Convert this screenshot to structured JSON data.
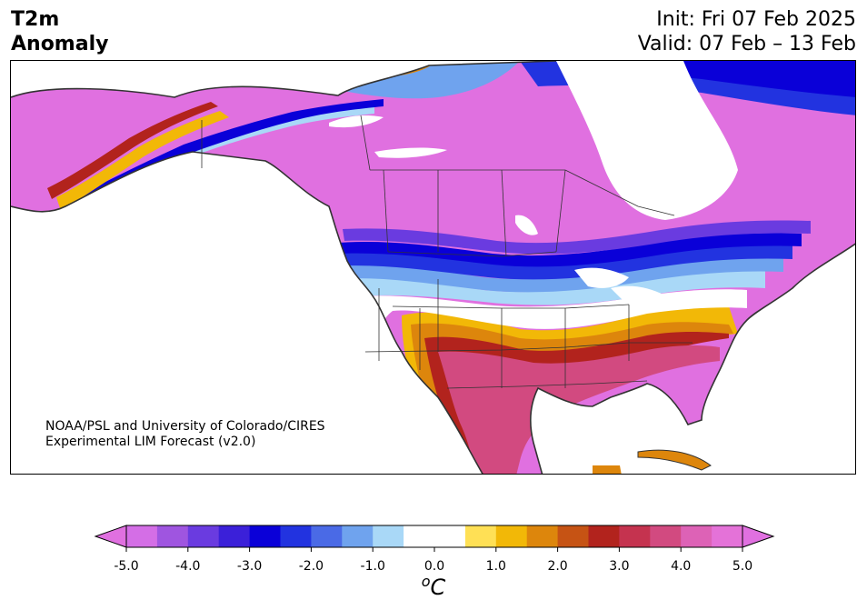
{
  "title": {
    "line1": "T2m",
    "line2": "Anomaly"
  },
  "forecast_info": {
    "init": "Init: Fri 07 Feb 2025",
    "valid": "Valid: 07 Feb – 13 Feb"
  },
  "credit": {
    "line1": "NOAA/PSL and University of Colorado/CIRES",
    "line2": "Experimental LIM Forecast (v2.0)"
  },
  "colorbar": {
    "unit": "oC",
    "ticks": [
      "-5.0",
      "-4.0",
      "-3.0",
      "-2.0",
      "-1.0",
      "0.0",
      "1.0",
      "2.0",
      "3.0",
      "4.0",
      "5.0"
    ],
    "levels": [
      -5.0,
      -4.5,
      -4.0,
      -3.5,
      -3.0,
      -2.5,
      -2.0,
      -1.5,
      -1.0,
      -0.5,
      0.5,
      1.0,
      1.5,
      2.0,
      2.5,
      3.0,
      3.5,
      4.0,
      4.5,
      5.0
    ],
    "colors": [
      "#d46ee6",
      "#9f55e0",
      "#6a3be0",
      "#3b20d9",
      "#0a00d8",
      "#2233e0",
      "#4a6ae6",
      "#6fa3ee",
      "#a9d8f7",
      "#ffffff",
      "#ffffff",
      "#ffe055",
      "#f2b807",
      "#dd860c",
      "#c65314",
      "#b2231d",
      "#c5334f",
      "#d24a80",
      "#dd62b6",
      "#e472d8"
    ],
    "under_color": "#e070e0",
    "over_color": "#e070e0"
  },
  "map": {
    "region": "North America",
    "projection": "Lambert conformal",
    "colors": {
      "cold_extreme": "#0a00d8",
      "warm_extreme": "#e070e0",
      "land_outline": "#333333"
    }
  }
}
